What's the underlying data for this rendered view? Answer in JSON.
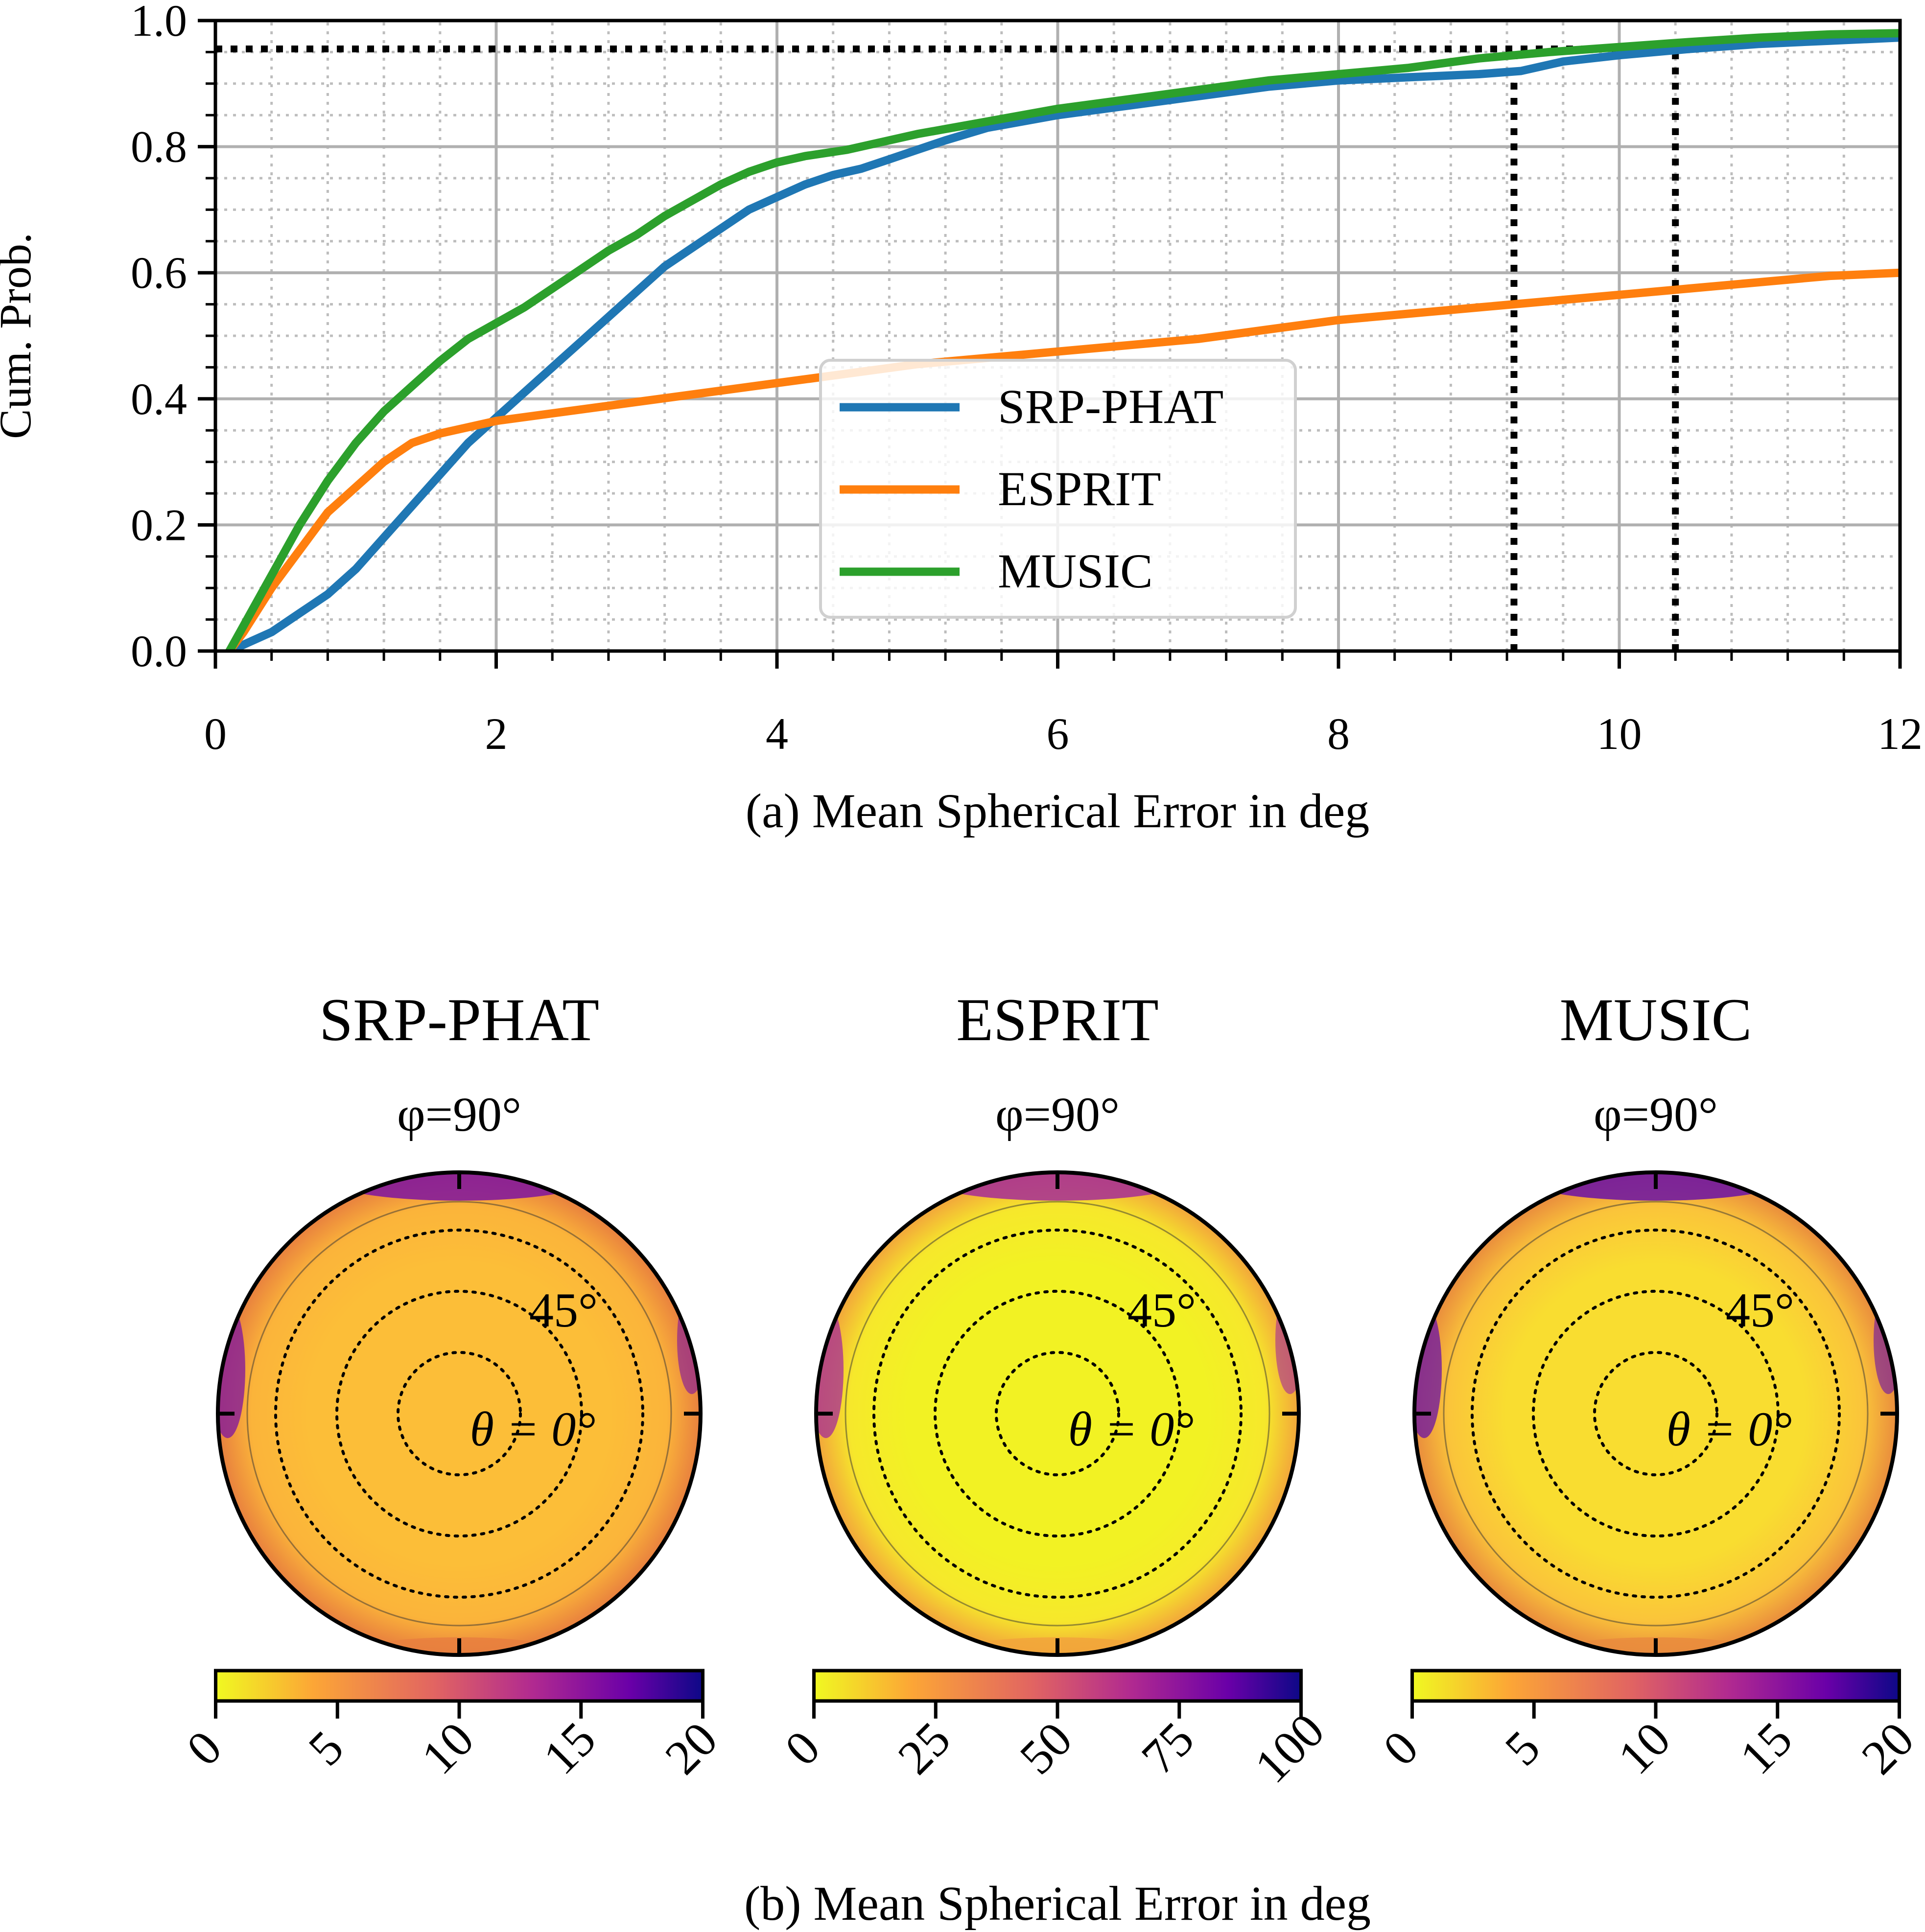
{
  "chart_data": [
    {
      "type": "line",
      "panel": "(a)",
      "xlabel": "(a) Mean Spherical Error in deg",
      "ylabel": "Cum. Prob.",
      "xlim": [
        0,
        12
      ],
      "ylim": [
        0,
        1.0
      ],
      "xticks": [
        "0",
        "2",
        "4",
        "6",
        "8",
        "10",
        "12"
      ],
      "yticks": [
        "0.0",
        "0.2",
        "0.4",
        "0.6",
        "0.8",
        "1.0"
      ],
      "grid": true,
      "legend_position": "center",
      "series": [
        {
          "name": "SRP-PHAT",
          "color": "#1f77b4",
          "x": [
            0.1,
            0.2,
            0.4,
            0.6,
            0.8,
            1.0,
            1.2,
            1.4,
            1.6,
            1.8,
            2.0,
            2.2,
            2.4,
            2.6,
            2.8,
            3.0,
            3.2,
            3.4,
            3.6,
            3.8,
            4.0,
            4.2,
            4.4,
            4.6,
            4.8,
            5.0,
            5.2,
            5.5,
            6.0,
            6.5,
            7.0,
            7.5,
            8.0,
            8.5,
            9.0,
            9.3,
            9.6,
            10.0,
            10.5,
            11.0,
            11.5,
            12.0
          ],
          "y": [
            0.0,
            0.01,
            0.03,
            0.06,
            0.09,
            0.13,
            0.18,
            0.23,
            0.28,
            0.33,
            0.37,
            0.41,
            0.45,
            0.49,
            0.53,
            0.57,
            0.61,
            0.64,
            0.67,
            0.7,
            0.72,
            0.74,
            0.755,
            0.765,
            0.78,
            0.795,
            0.81,
            0.83,
            0.85,
            0.865,
            0.88,
            0.895,
            0.905,
            0.91,
            0.915,
            0.92,
            0.935,
            0.945,
            0.955,
            0.963,
            0.968,
            0.973
          ]
        },
        {
          "name": "ESPRIT",
          "color": "#ff7f0e",
          "x": [
            0.1,
            0.2,
            0.4,
            0.6,
            0.8,
            1.0,
            1.2,
            1.4,
            1.6,
            1.8,
            2.0,
            2.5,
            3.0,
            3.5,
            4.0,
            4.5,
            5.0,
            5.5,
            6.0,
            6.5,
            7.0,
            7.5,
            8.0,
            8.5,
            9.0,
            9.5,
            10.0,
            10.5,
            11.0,
            11.5,
            12.0
          ],
          "y": [
            0.0,
            0.03,
            0.1,
            0.16,
            0.22,
            0.26,
            0.3,
            0.33,
            0.345,
            0.355,
            0.365,
            0.38,
            0.395,
            0.41,
            0.425,
            0.44,
            0.455,
            0.465,
            0.475,
            0.485,
            0.495,
            0.51,
            0.525,
            0.535,
            0.545,
            0.555,
            0.565,
            0.575,
            0.585,
            0.595,
            0.6
          ]
        },
        {
          "name": "MUSIC",
          "color": "#2ca02c",
          "x": [
            0.1,
            0.2,
            0.4,
            0.6,
            0.8,
            1.0,
            1.2,
            1.4,
            1.6,
            1.8,
            2.0,
            2.2,
            2.4,
            2.6,
            2.8,
            3.0,
            3.2,
            3.4,
            3.6,
            3.8,
            4.0,
            4.2,
            4.5,
            5.0,
            5.5,
            6.0,
            6.5,
            7.0,
            7.5,
            8.0,
            8.5,
            9.0,
            9.5,
            10.0,
            10.5,
            11.0,
            11.5,
            12.0
          ],
          "y": [
            0.0,
            0.04,
            0.12,
            0.2,
            0.27,
            0.33,
            0.38,
            0.42,
            0.46,
            0.495,
            0.52,
            0.545,
            0.575,
            0.605,
            0.635,
            0.66,
            0.69,
            0.715,
            0.74,
            0.76,
            0.775,
            0.785,
            0.795,
            0.82,
            0.84,
            0.86,
            0.875,
            0.89,
            0.905,
            0.915,
            0.925,
            0.94,
            0.95,
            0.958,
            0.966,
            0.973,
            0.978,
            0.98
          ]
        }
      ],
      "reference_lines": [
        {
          "orientation": "horizontal",
          "y": 0.955,
          "x_end": 10.4
        },
        {
          "orientation": "vertical",
          "x": 9.25,
          "y_end": 0.955
        },
        {
          "orientation": "vertical",
          "x": 10.4,
          "y_end": 0.955
        }
      ]
    },
    {
      "type": "heatmap",
      "panel": "(b)",
      "xlabel": "(b) Mean Spherical Error in deg",
      "colormap": "plasma_r",
      "colormap_stops": [
        "#f0f921",
        "#fca636",
        "#e16462",
        "#b12a90",
        "#6a00a8",
        "#0d0887"
      ],
      "plots": [
        {
          "title": "SRP-PHAT",
          "top_label": "φ=90°",
          "ring_label": "45°",
          "center_label": "θ = 0°",
          "colorbar_range": [
            0,
            20
          ],
          "colorbar_ticks": [
            "0",
            "5",
            "10",
            "15",
            "20"
          ],
          "base_color": "#fbb43a",
          "interior_color": "#fcbe38",
          "edge_color": "#e8803e",
          "hotspot_color": "#7e13a0"
        },
        {
          "title": "ESPRIT",
          "top_label": "φ=90°",
          "ring_label": "45°",
          "center_label": "θ = 0°",
          "colorbar_range": [
            0,
            100
          ],
          "colorbar_ticks": [
            "0",
            "25",
            "50",
            "75",
            "100"
          ],
          "base_color": "#f6e82b",
          "interior_color": "#f2f223",
          "edge_color": "#f2a53b",
          "hotspot_color": "#a52b97"
        },
        {
          "title": "MUSIC",
          "top_label": "φ=90°",
          "ring_label": "45°",
          "center_label": "θ = 0°",
          "colorbar_range": [
            0,
            20
          ],
          "colorbar_ticks": [
            "0",
            "5",
            "10",
            "15",
            "20"
          ],
          "base_color": "#fac43a",
          "interior_color": "#f9dd30",
          "edge_color": "#e98c3d",
          "hotspot_color": "#6a11a6"
        }
      ]
    }
  ]
}
